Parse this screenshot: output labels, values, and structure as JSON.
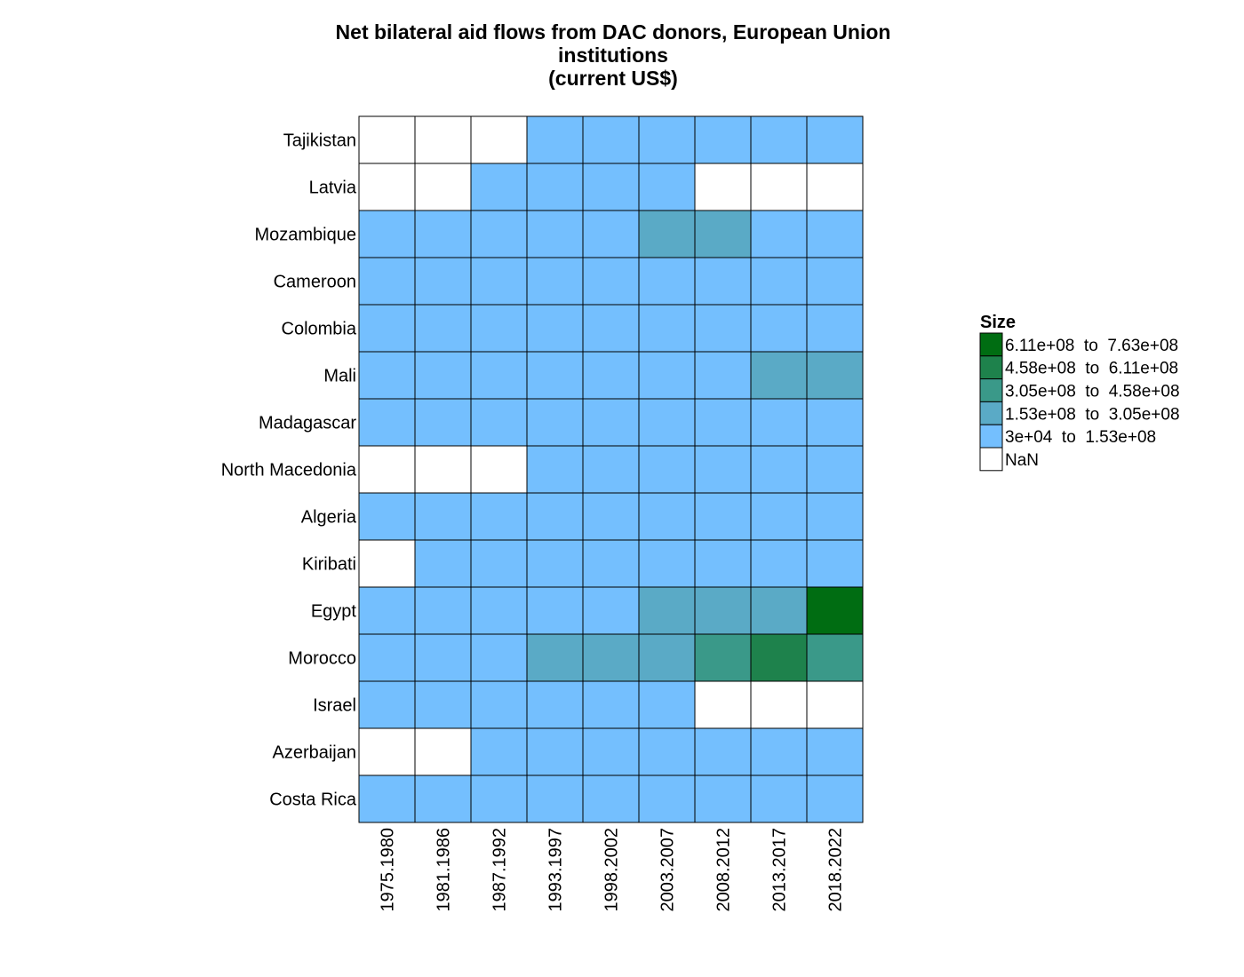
{
  "chart_data": {
    "type": "heatmap",
    "title_lines": [
      "Net bilateral aid flows from DAC donors, European Union",
      "institutions",
      "(current US$)"
    ],
    "xlabel": "",
    "ylabel": "",
    "x_categories": [
      "1975.1980",
      "1981.1986",
      "1987.1992",
      "1993.1997",
      "1998.2002",
      "2003.2007",
      "2008.2012",
      "2013.2017",
      "2018.2022"
    ],
    "y_categories": [
      "Tajikistan",
      "Latvia",
      "Mozambique",
      "Cameroon",
      "Colombia",
      "Mali",
      "Madagascar",
      "North Macedonia",
      "Algeria",
      "Kiribati",
      "Egypt",
      "Morocco",
      "Israel",
      "Azerbaijan",
      "Costa Rica"
    ],
    "bin_index_matrix": [
      [
        5,
        5,
        5,
        4,
        4,
        4,
        4,
        4,
        4
      ],
      [
        5,
        5,
        4,
        4,
        4,
        4,
        5,
        5,
        5
      ],
      [
        4,
        4,
        4,
        4,
        4,
        3,
        3,
        4,
        4
      ],
      [
        4,
        4,
        4,
        4,
        4,
        4,
        4,
        4,
        4
      ],
      [
        4,
        4,
        4,
        4,
        4,
        4,
        4,
        4,
        4
      ],
      [
        4,
        4,
        4,
        4,
        4,
        4,
        4,
        3,
        3
      ],
      [
        4,
        4,
        4,
        4,
        4,
        4,
        4,
        4,
        4
      ],
      [
        5,
        5,
        5,
        4,
        4,
        4,
        4,
        4,
        4
      ],
      [
        4,
        4,
        4,
        4,
        4,
        4,
        4,
        4,
        4
      ],
      [
        5,
        4,
        4,
        4,
        4,
        4,
        4,
        4,
        4
      ],
      [
        4,
        4,
        4,
        4,
        4,
        3,
        3,
        3,
        0
      ],
      [
        4,
        4,
        4,
        3,
        3,
        3,
        2,
        1,
        2
      ],
      [
        4,
        4,
        4,
        4,
        4,
        4,
        5,
        5,
        5
      ],
      [
        5,
        5,
        4,
        4,
        4,
        4,
        4,
        4,
        4
      ],
      [
        4,
        4,
        4,
        4,
        4,
        4,
        4,
        4,
        4
      ]
    ],
    "legend": {
      "title": "Size",
      "placement": "right",
      "bins": [
        {
          "label": "6.11e+08  to  7.63e+08",
          "range": [
            611000000,
            763000000
          ],
          "color": "#006d12"
        },
        {
          "label": "4.58e+08  to  6.11e+08",
          "range": [
            458000000,
            611000000
          ],
          "color": "#1e824c"
        },
        {
          "label": "3.05e+08  to  4.58e+08",
          "range": [
            305000000,
            458000000
          ],
          "color": "#3a9989"
        },
        {
          "label": "1.53e+08  to  3.05e+08",
          "range": [
            153000000,
            305000000
          ],
          "color": "#5aaac6"
        },
        {
          "label": "3e+04  to  1.53e+08",
          "range": [
            30000,
            153000000
          ],
          "color": "#74bffe"
        },
        {
          "label": "NaN",
          "range": null,
          "color": "#ffffff"
        }
      ]
    },
    "grid": true
  }
}
